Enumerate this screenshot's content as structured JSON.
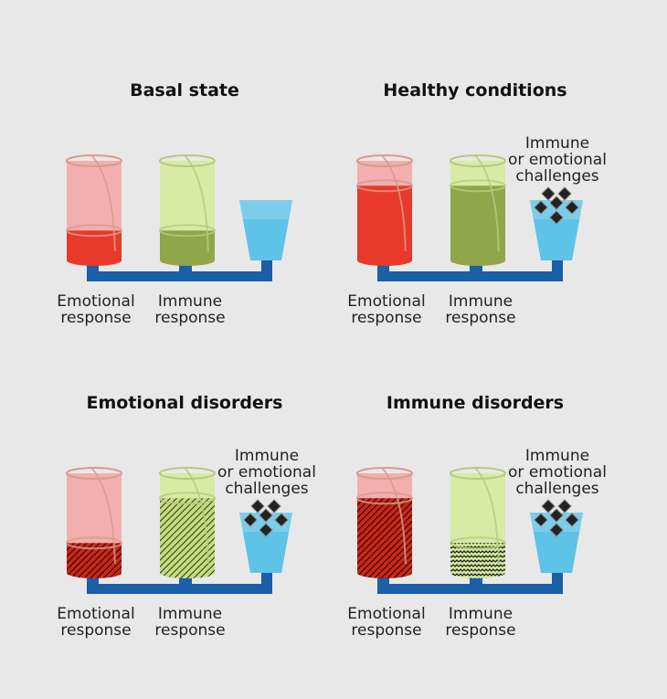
{
  "colors": {
    "background": "#e8e8e8",
    "emotional_empty": "#f4a9a9",
    "emotional_fill": "#e8392a",
    "emotional_disorder_fill": "#8c1f17",
    "immune_empty": "#d6ea9c",
    "immune_fill": "#8fa64a",
    "cup": "#5ec3e6",
    "pipe": "#1a5fa8",
    "challenge": "#222222"
  },
  "panels": [
    {
      "title": "Basal  state",
      "emotional_label": [
        "Emotional",
        "response"
      ],
      "immune_label": [
        "Immune",
        "response"
      ],
      "emotional_level": 0.3,
      "immune_level": 0.3,
      "emotional_pattern": "solid",
      "immune_pattern": "solid",
      "challenges": false,
      "challenge_label": []
    },
    {
      "title": "Healthy conditions",
      "emotional_label": [
        "Emotional",
        "response"
      ],
      "immune_label": [
        "Immune",
        "response"
      ],
      "emotional_level": 0.75,
      "immune_level": 0.75,
      "emotional_pattern": "solid",
      "immune_pattern": "solid",
      "challenges": true,
      "challenge_label": [
        "Immune",
        "or emotional",
        "challenges"
      ]
    },
    {
      "title": "Emotional  disorders",
      "emotional_label": [
        "Emotional",
        "response"
      ],
      "immune_label": [
        "Immune",
        "response"
      ],
      "emotional_level": 0.3,
      "immune_level": 0.75,
      "emotional_pattern": "hatched",
      "immune_pattern": "hatched",
      "challenges": true,
      "challenge_label": [
        "Immune",
        "or emotional",
        "challenges"
      ]
    },
    {
      "title": "Immune disorders",
      "emotional_label": [
        "Emotional",
        "response"
      ],
      "immune_label": [
        "Immune",
        "response"
      ],
      "emotional_level": 0.75,
      "immune_level": 0.3,
      "emotional_pattern": "hatched",
      "immune_pattern": "wavy",
      "challenges": true,
      "challenge_label": [
        "Immune",
        "or emotional",
        "challenges"
      ]
    }
  ]
}
